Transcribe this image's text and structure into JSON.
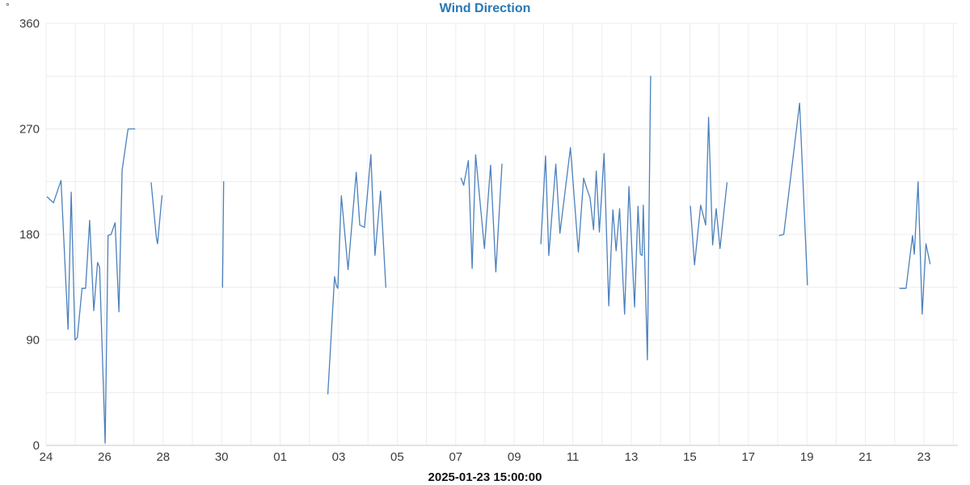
{
  "header": {
    "title": "Wind Direction"
  },
  "axes": {
    "y_unit": "°",
    "y_ticks": [
      {
        "value": 0,
        "label": "0"
      },
      {
        "value": 90,
        "label": "90"
      },
      {
        "value": 180,
        "label": "180"
      },
      {
        "value": 270,
        "label": "270"
      },
      {
        "value": 360,
        "label": "360"
      }
    ],
    "x_ticks": [
      {
        "day": 24,
        "label": "24"
      },
      {
        "day": 26,
        "label": "26"
      },
      {
        "day": 28,
        "label": "28"
      },
      {
        "day": 30,
        "label": "30"
      },
      {
        "day": 32,
        "label": "01"
      },
      {
        "day": 34,
        "label": "03"
      },
      {
        "day": 36,
        "label": "05"
      },
      {
        "day": 38,
        "label": "07"
      },
      {
        "day": 40,
        "label": "09"
      },
      {
        "day": 42,
        "label": "11"
      },
      {
        "day": 44,
        "label": "13"
      },
      {
        "day": 46,
        "label": "15"
      },
      {
        "day": 48,
        "label": "17"
      },
      {
        "day": 50,
        "label": "19"
      },
      {
        "day": 52,
        "label": "21"
      },
      {
        "day": 54,
        "label": "23"
      }
    ],
    "x_axis_name": "2025-01-23 15:00:00"
  },
  "colors": {
    "line": "#4b80bc",
    "title": "#2878b4",
    "grid": "#ececec",
    "axis_line": "#c9c9c9",
    "tick_text": "#3c3c3c"
  },
  "chart_data": {
    "type": "line",
    "title": "Wind Direction",
    "x_axis_label": "2025-01-23 15:00:00",
    "y_unit": "degrees",
    "ylim": [
      0,
      360
    ],
    "y_grid_step": 45,
    "xlim_days": [
      24,
      55.16
    ],
    "x_grid_step_days": 1,
    "legend": "none",
    "note": "x values are day-of-month units: 24..31 = Jan 24-31, 32..54 = Feb 01-23; gaps between segments are missing data",
    "series": [
      {
        "name": "Wind Direction",
        "segments": [
          [
            [
              24.04,
              212
            ],
            [
              24.25,
              207
            ],
            [
              24.51,
              226
            ],
            [
              24.75,
              99
            ],
            [
              24.86,
              216
            ],
            [
              24.99,
              90
            ],
            [
              25.07,
              92
            ],
            [
              25.23,
              134
            ],
            [
              25.35,
              134
            ],
            [
              25.49,
              192
            ],
            [
              25.63,
              115
            ],
            [
              25.76,
              156
            ],
            [
              25.83,
              152
            ],
            [
              26.02,
              2
            ],
            [
              26.12,
              179
            ],
            [
              26.22,
              180
            ],
            [
              26.36,
              190
            ],
            [
              26.49,
              114
            ],
            [
              26.6,
              235
            ],
            [
              26.8,
              270
            ],
            [
              27.03,
              270
            ]
          ],
          [
            [
              27.59,
              224
            ],
            [
              27.77,
              177
            ],
            [
              27.81,
              172
            ],
            [
              27.96,
              213
            ]
          ],
          [
            [
              30.03,
              135
            ],
            [
              30.07,
              225
            ]
          ],
          [
            [
              33.63,
              44
            ],
            [
              33.86,
              144
            ],
            [
              33.92,
              136
            ],
            [
              33.97,
              134
            ],
            [
              34.09,
              213
            ],
            [
              34.32,
              150
            ],
            [
              34.6,
              233
            ],
            [
              34.72,
              188
            ],
            [
              34.88,
              186
            ],
            [
              35.1,
              248
            ],
            [
              35.24,
              162
            ],
            [
              35.43,
              217
            ],
            [
              35.61,
              135
            ]
          ],
          [
            [
              38.18,
              228
            ],
            [
              38.27,
              222
            ],
            [
              38.43,
              243
            ],
            [
              38.56,
              151
            ],
            [
              38.68,
              248
            ],
            [
              38.98,
              168
            ],
            [
              39.19,
              239
            ],
            [
              39.37,
              148
            ],
            [
              39.58,
              240
            ]
          ],
          [
            [
              40.91,
              172
            ],
            [
              41.07,
              247
            ],
            [
              41.18,
              162
            ],
            [
              41.42,
              240
            ],
            [
              41.56,
              181
            ],
            [
              41.92,
              254
            ],
            [
              42.19,
              165
            ],
            [
              42.37,
              228
            ],
            [
              42.48,
              219
            ],
            [
              42.59,
              211
            ],
            [
              42.71,
              184
            ],
            [
              42.8,
              234
            ],
            [
              42.91,
              182
            ],
            [
              43.07,
              249
            ],
            [
              43.23,
              119
            ],
            [
              43.37,
              201
            ],
            [
              43.48,
              166
            ],
            [
              43.6,
              202
            ],
            [
              43.77,
              112
            ],
            [
              43.92,
              221
            ],
            [
              44.11,
              118
            ],
            [
              44.23,
              204
            ],
            [
              44.31,
              163
            ],
            [
              44.37,
              162
            ],
            [
              44.41,
              205
            ],
            [
              44.55,
              73
            ],
            [
              44.66,
              315
            ]
          ],
          [
            [
              46.02,
              204
            ],
            [
              46.16,
              154
            ],
            [
              46.37,
              205
            ],
            [
              46.54,
              188
            ],
            [
              46.64,
              280
            ],
            [
              46.78,
              171
            ],
            [
              46.9,
              202
            ],
            [
              47.03,
              168
            ],
            [
              47.27,
              224
            ]
          ],
          [
            [
              49.06,
              179
            ],
            [
              49.21,
              180
            ],
            [
              49.75,
              292
            ],
            [
              50.02,
              137
            ]
          ],
          [
            [
              53.18,
              134
            ],
            [
              53.39,
              134
            ],
            [
              53.61,
              179
            ],
            [
              53.67,
              163
            ],
            [
              53.8,
              225
            ],
            [
              53.94,
              112
            ],
            [
              54.07,
              172
            ],
            [
              54.21,
              155
            ]
          ]
        ]
      }
    ]
  }
}
